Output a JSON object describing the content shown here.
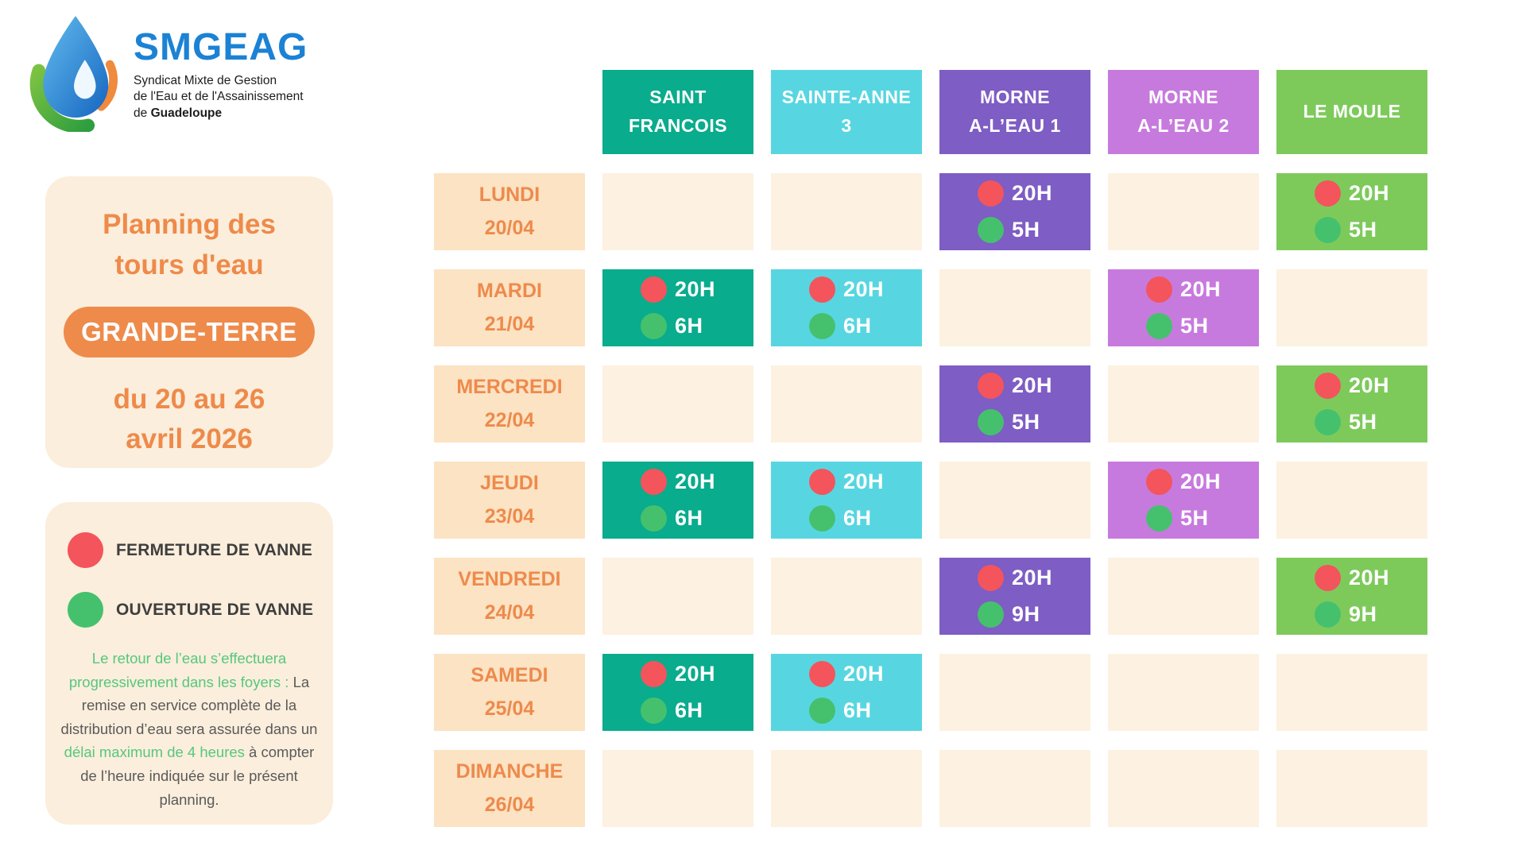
{
  "logo": {
    "acronym": "SMGEAG",
    "subtitle_line1": "Syndicat Mixte de Gestion",
    "subtitle_line2": "de l'Eau et de l'Assainissement",
    "subtitle_line3_prefix": "de ",
    "subtitle_line3_bold": "Guadeloupe"
  },
  "info_panel": {
    "title_line1": "Planning des",
    "title_line2": "tours d'eau",
    "badge": "GRANDE-TERRE",
    "date_line1": "du 20 au 26",
    "date_line2": "avril 2026"
  },
  "legend": {
    "close_label": "FERMETURE DE VANNE",
    "open_label": "OUVERTURE DE VANNE",
    "note_green1": "Le retour de l’eau s’effectuera progressivement dans les foyers :",
    "note_gray1": " La remise en service complète de la distribution d’eau sera assurée dans un ",
    "note_green2": "délai maximum de 4 heures",
    "note_gray2": " à compter de l’heure indiquée sur le présent planning."
  },
  "colors": {
    "accent_orange": "#EE8A4A",
    "panel_cream": "#FBEEDC",
    "day_cell_cream": "#FBE3C3",
    "empty_cell_cream": "#FDF1E1",
    "valve_close_red": "#F4545C",
    "valve_open_green": "#45C16E",
    "note_green": "#56C77D",
    "note_gray": "#5A5A5A",
    "logo_blue": "#1C82D4"
  },
  "schedule": {
    "columns": [
      {
        "id": "saint-francois",
        "lines": [
          "SAINT",
          "FRANCOIS"
        ],
        "color": "#09AC8D"
      },
      {
        "id": "sainte-anne-3",
        "lines": [
          "SAINTE-ANNE",
          "3"
        ],
        "color": "#57D6E1"
      },
      {
        "id": "morne-a-leau-1",
        "lines": [
          "MORNE",
          "A-L’EAU 1"
        ],
        "color": "#7E5DC4"
      },
      {
        "id": "morne-a-leau-2",
        "lines": [
          "MORNE",
          "A-L’EAU 2"
        ],
        "color": "#C77ADD"
      },
      {
        "id": "le-moule",
        "lines": [
          "LE MOULE"
        ],
        "color": "#7DCA5B"
      }
    ],
    "rows": [
      {
        "id": "lundi",
        "day": "LUNDI",
        "date": "20/04",
        "cells": [
          null,
          null,
          {
            "close": "20H",
            "open": "5H"
          },
          null,
          {
            "close": "20H",
            "open": "5H"
          }
        ]
      },
      {
        "id": "mardi",
        "day": "MARDI",
        "date": "21/04",
        "cells": [
          {
            "close": "20H",
            "open": "6H"
          },
          {
            "close": "20H",
            "open": "6H"
          },
          null,
          {
            "close": "20H",
            "open": "5H"
          },
          null
        ]
      },
      {
        "id": "mercredi",
        "day": "MERCREDI",
        "date": "22/04",
        "cells": [
          null,
          null,
          {
            "close": "20H",
            "open": "5H"
          },
          null,
          {
            "close": "20H",
            "open": "5H"
          }
        ]
      },
      {
        "id": "jeudi",
        "day": "JEUDI",
        "date": "23/04",
        "cells": [
          {
            "close": "20H",
            "open": "6H"
          },
          {
            "close": "20H",
            "open": "6H"
          },
          null,
          {
            "close": "20H",
            "open": "5H"
          },
          null
        ]
      },
      {
        "id": "vendredi",
        "day": "VENDREDI",
        "date": "24/04",
        "cells": [
          null,
          null,
          {
            "close": "20H",
            "open": "9H"
          },
          null,
          {
            "close": "20H",
            "open": "9H"
          }
        ]
      },
      {
        "id": "samedi",
        "day": "SAMEDI",
        "date": "25/04",
        "cells": [
          {
            "close": "20H",
            "open": "6H"
          },
          {
            "close": "20H",
            "open": "6H"
          },
          null,
          null,
          null
        ]
      },
      {
        "id": "dimanche",
        "day": "DIMANCHE",
        "date": "26/04",
        "cells": [
          null,
          null,
          null,
          null,
          null
        ]
      }
    ]
  }
}
